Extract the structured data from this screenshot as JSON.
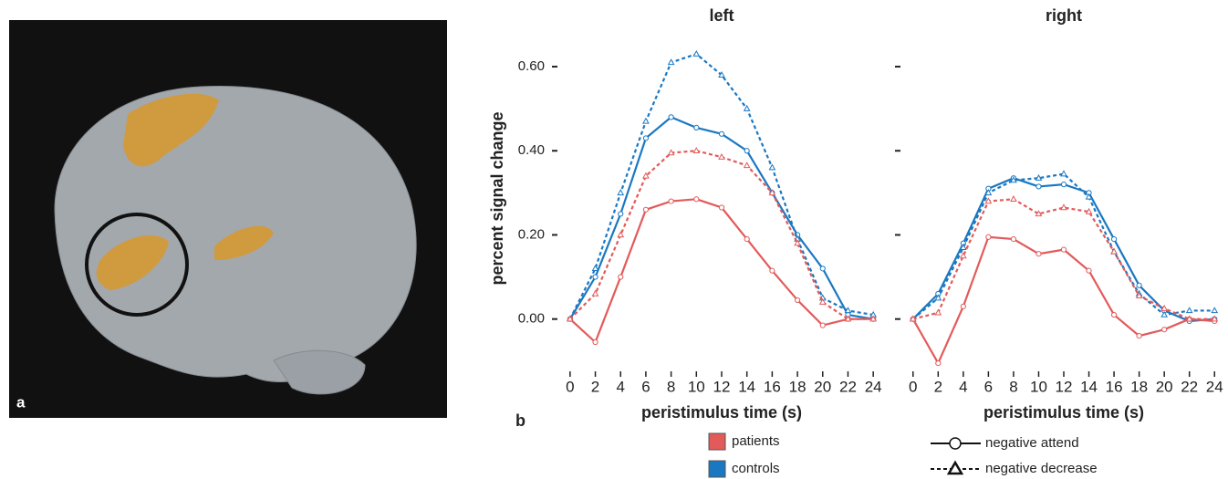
{
  "chart_data": [
    {
      "type": "line",
      "title": "left",
      "xlabel": "peristimulus time (s)",
      "ylabel": "percent signal change",
      "x": [
        0,
        2,
        4,
        6,
        8,
        10,
        12,
        14,
        16,
        18,
        20,
        22,
        24
      ],
      "xlim": [
        -1,
        25
      ],
      "xticks": [
        0,
        2,
        4,
        6,
        8,
        10,
        12,
        14,
        16,
        18,
        20,
        22,
        24
      ],
      "ylim": [
        -0.12,
        0.65
      ],
      "yticks": [
        {
          "value": 0,
          "label": "0.00"
        },
        {
          "value": 0.2,
          "label": "0.20"
        },
        {
          "value": 0.4,
          "label": "0.40"
        },
        {
          "value": 0.6,
          "label": "0.60"
        }
      ],
      "series": [
        {
          "group": "controls",
          "style": "negative attend",
          "values": [
            0,
            0.1,
            0.25,
            0.43,
            0.48,
            0.455,
            0.44,
            0.4,
            0.3,
            0.2,
            0.12,
            0.01,
            0.0
          ]
        },
        {
          "group": "controls",
          "style": "negative decrease",
          "values": [
            0,
            0.12,
            0.3,
            0.47,
            0.61,
            0.63,
            0.58,
            0.5,
            0.36,
            0.19,
            0.05,
            0.02,
            0.01
          ]
        },
        {
          "group": "patients",
          "style": "negative attend",
          "values": [
            0,
            -0.055,
            0.1,
            0.26,
            0.28,
            0.285,
            0.265,
            0.19,
            0.115,
            0.045,
            -0.015,
            0.0,
            0.0
          ]
        },
        {
          "group": "patients",
          "style": "negative decrease",
          "values": [
            0,
            0.06,
            0.2,
            0.34,
            0.395,
            0.4,
            0.385,
            0.365,
            0.3,
            0.18,
            0.04,
            0.0,
            0.0
          ]
        }
      ]
    },
    {
      "type": "line",
      "title": "right",
      "xlabel": "peristimulus time (s)",
      "x": [
        0,
        2,
        4,
        6,
        8,
        10,
        12,
        14,
        16,
        18,
        20,
        22,
        24
      ],
      "xlim": [
        -1,
        25
      ],
      "xticks": [
        0,
        2,
        4,
        6,
        8,
        10,
        12,
        14,
        16,
        18,
        20,
        22,
        24
      ],
      "ylim": [
        -0.12,
        0.65
      ],
      "series": [
        {
          "group": "controls",
          "style": "negative attend",
          "values": [
            0,
            0.06,
            0.18,
            0.31,
            0.335,
            0.315,
            0.32,
            0.3,
            0.19,
            0.08,
            0.02,
            -0.005,
            0.0
          ]
        },
        {
          "group": "controls",
          "style": "negative decrease",
          "values": [
            0,
            0.05,
            0.17,
            0.3,
            0.33,
            0.335,
            0.345,
            0.29,
            0.16,
            0.06,
            0.01,
            0.02,
            0.02
          ]
        },
        {
          "group": "patients",
          "style": "negative attend",
          "values": [
            0,
            -0.105,
            0.03,
            0.195,
            0.19,
            0.155,
            0.165,
            0.115,
            0.01,
            -0.04,
            -0.025,
            0.0,
            -0.005
          ]
        },
        {
          "group": "patients",
          "style": "negative decrease",
          "values": [
            0,
            0.015,
            0.15,
            0.28,
            0.285,
            0.25,
            0.265,
            0.255,
            0.16,
            0.055,
            0.025,
            0.0,
            0.0
          ]
        }
      ]
    }
  ],
  "legend": {
    "groups": [
      {
        "name": "patients",
        "color": "#e35a5a"
      },
      {
        "name": "controls",
        "color": "#1a78c2"
      }
    ],
    "styles": [
      {
        "name": "negative attend",
        "dash": "solid",
        "marker": "circle"
      },
      {
        "name": "negative decrease",
        "dash": "dashed",
        "marker": "triangle"
      }
    ]
  },
  "panel_labels": [
    "a",
    "b"
  ]
}
